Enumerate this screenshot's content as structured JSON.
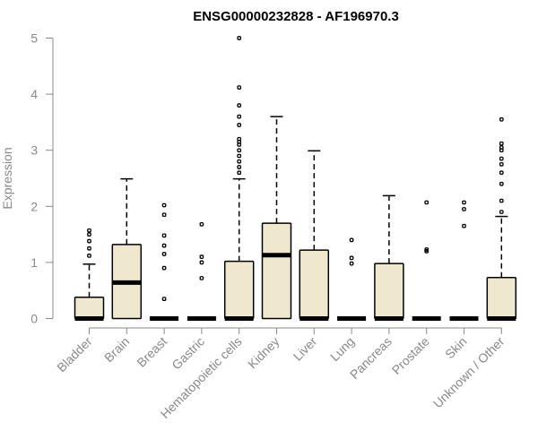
{
  "chart_data": {
    "type": "boxplot",
    "title": "ENSG00000232828 - AF196970.3",
    "ylabel": "Expression",
    "xlabel": "",
    "ylim": [
      0,
      5
    ],
    "yticks": [
      "0",
      "1",
      "2",
      "3",
      "4",
      "5"
    ],
    "grid": false,
    "categories": [
      "Bladder",
      "Brain",
      "Breast",
      "Gastric",
      "Hematopoietic cells",
      "Kidney",
      "Liver",
      "Lung",
      "Pancreas",
      "Prostate",
      "Skin",
      "Unknown / Other"
    ],
    "boxes": [
      {
        "q1": 0,
        "median": 0,
        "q3": 0.38,
        "whisker_low": 0,
        "whisker_high": 0.97,
        "outliers": [
          1.12,
          1.25,
          1.38,
          1.5,
          1.57
        ]
      },
      {
        "q1": 0,
        "median": 0.64,
        "q3": 1.32,
        "whisker_low": 0,
        "whisker_high": 2.49,
        "outliers": []
      },
      {
        "q1": 0,
        "median": 0,
        "q3": 0,
        "whisker_low": 0,
        "whisker_high": 0,
        "outliers": [
          0.35,
          0.9,
          1.15,
          1.3,
          1.48,
          1.85,
          2.02
        ]
      },
      {
        "q1": 0,
        "median": 0,
        "q3": 0,
        "whisker_low": 0,
        "whisker_high": 0,
        "outliers": [
          0.72,
          1.0,
          1.1,
          1.68
        ]
      },
      {
        "q1": 0,
        "median": 0,
        "q3": 1.02,
        "whisker_low": 0,
        "whisker_high": 2.49,
        "outliers": [
          2.6,
          2.7,
          2.8,
          2.9,
          3.0,
          3.1,
          3.15,
          3.2,
          3.45,
          3.6,
          3.8,
          4.12,
          5.0
        ]
      },
      {
        "q1": 0,
        "median": 1.13,
        "q3": 1.7,
        "whisker_low": 0,
        "whisker_high": 3.6,
        "outliers": []
      },
      {
        "q1": 0,
        "median": 0,
        "q3": 1.22,
        "whisker_low": 0,
        "whisker_high": 2.99,
        "outliers": []
      },
      {
        "q1": 0,
        "median": 0,
        "q3": 0,
        "whisker_low": 0,
        "whisker_high": 0,
        "outliers": [
          0.98,
          1.08,
          1.4
        ]
      },
      {
        "q1": 0,
        "median": 0,
        "q3": 0.98,
        "whisker_low": 0,
        "whisker_high": 2.19,
        "outliers": []
      },
      {
        "q1": 0,
        "median": 0,
        "q3": 0,
        "whisker_low": 0,
        "whisker_high": 0,
        "outliers": [
          1.2,
          1.23,
          2.07
        ]
      },
      {
        "q1": 0,
        "median": 0,
        "q3": 0,
        "whisker_low": 0,
        "whisker_high": 0,
        "outliers": [
          1.65,
          1.95,
          2.07
        ]
      },
      {
        "q1": 0,
        "median": 0,
        "q3": 0.73,
        "whisker_low": 0,
        "whisker_high": 1.82,
        "outliers": [
          1.9,
          2.1,
          2.4,
          2.6,
          2.75,
          2.85,
          3.0,
          3.05,
          3.12,
          3.55
        ]
      }
    ],
    "box_color": "#efe8cf",
    "axis_color": "#888888"
  }
}
